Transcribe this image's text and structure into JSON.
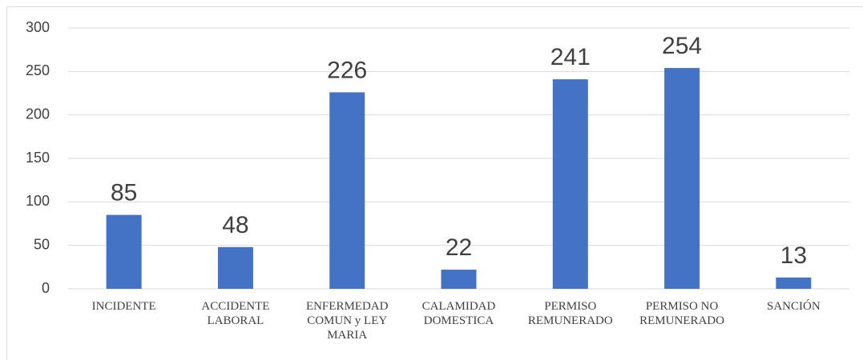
{
  "chart_data": {
    "type": "bar",
    "categories": [
      "INCIDENTE",
      "ACCIDENTE LABORAL",
      "ENFERMEDAD COMUN y LEY MARIA",
      "CALAMIDAD DOMESTICA",
      "PERMISO REMUNERADO",
      "PERMISO NO REMUNERADO",
      "SANCIÓN"
    ],
    "values": [
      85,
      48,
      226,
      22,
      241,
      254,
      13
    ],
    "color": "#4472c4",
    "ylim": [
      0,
      300
    ],
    "yticks": [
      0,
      50,
      100,
      150,
      200,
      250,
      300
    ],
    "grid": true
  }
}
